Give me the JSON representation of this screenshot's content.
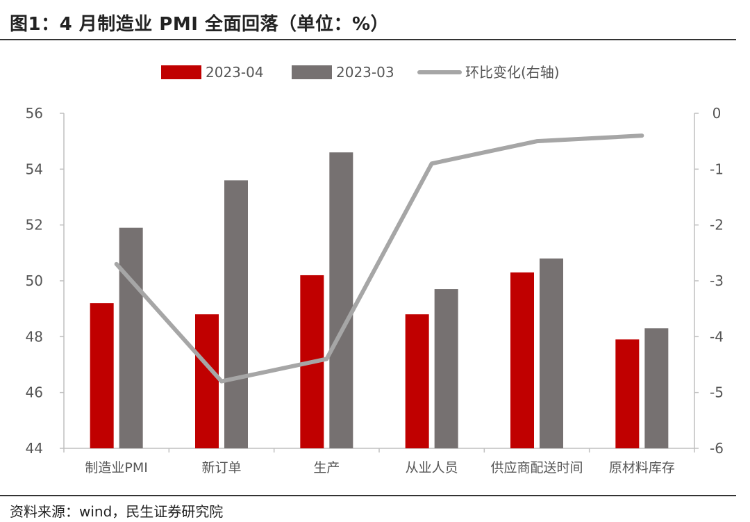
{
  "title": "图1：4 月制造业 PMI 全面回落（单位：%）",
  "source": "资料来源：wind，民生证券研究院",
  "colors": {
    "series_2023_04": "#c00000",
    "series_2023_03": "#767171",
    "line": "#a6a6a6",
    "axis": "#bfbfbf"
  },
  "chart_data": {
    "type": "bar",
    "categories": [
      "制造业PMI",
      "新订单",
      "生产",
      "从业人员",
      "供应商配送时间",
      "原材料库存"
    ],
    "series": [
      {
        "name": "2023-04",
        "type": "bar",
        "axis": "left",
        "values": [
          49.2,
          48.8,
          50.2,
          48.8,
          50.3,
          47.9
        ]
      },
      {
        "name": "2023-03",
        "type": "bar",
        "axis": "left",
        "values": [
          51.9,
          53.6,
          54.6,
          49.7,
          50.8,
          48.3
        ]
      },
      {
        "name": "环比变化(右轴)",
        "type": "line",
        "axis": "right",
        "values": [
          -2.7,
          -4.8,
          -4.4,
          -0.9,
          -0.5,
          -0.4
        ]
      }
    ],
    "left_axis": {
      "ylim": [
        44,
        56
      ],
      "ticks": [
        "56",
        "54",
        "52",
        "50",
        "48",
        "46",
        "44"
      ]
    },
    "right_axis": {
      "ylim": [
        -6,
        0
      ],
      "ticks": [
        "0",
        "-1",
        "-2",
        "-3",
        "-4",
        "-5",
        "-6"
      ]
    },
    "legend_position": "top",
    "grid": false
  }
}
